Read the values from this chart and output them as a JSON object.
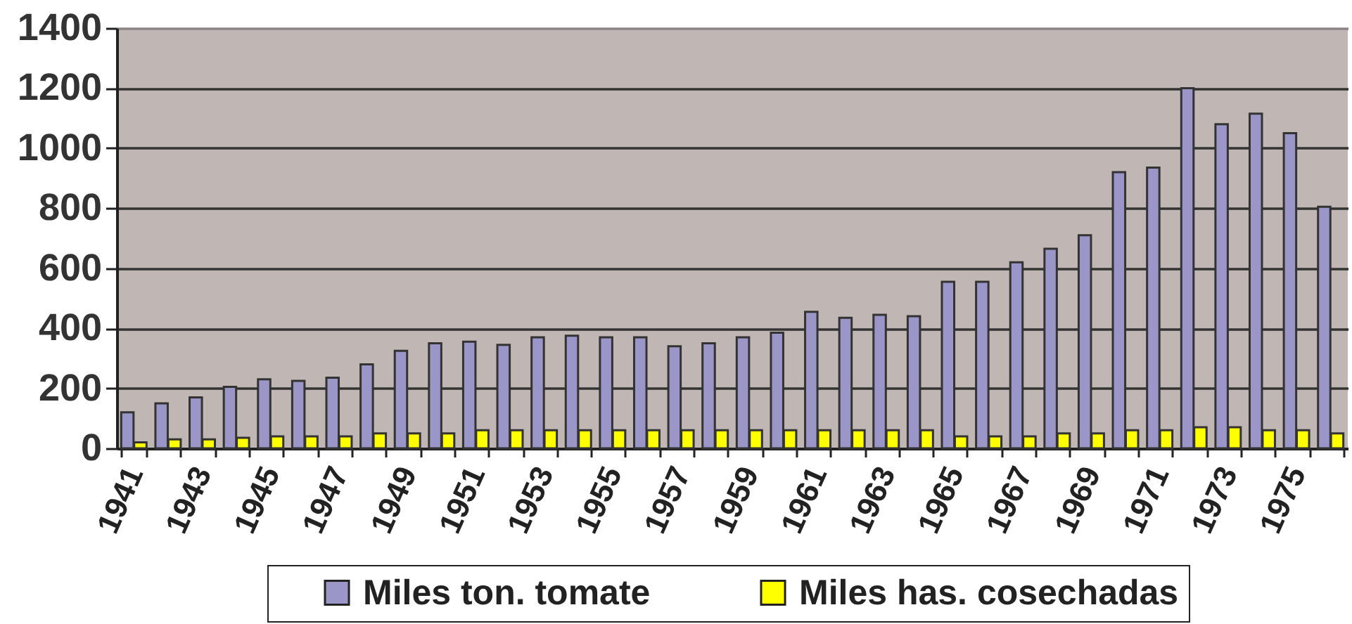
{
  "chart_data": {
    "type": "bar",
    "categories": [
      "1941",
      null,
      "1943",
      null,
      "1945",
      null,
      "1947",
      null,
      "1949",
      null,
      "1951",
      null,
      "1953",
      null,
      "1955",
      null,
      "1957",
      null,
      "1959",
      null,
      "1961",
      null,
      "1963",
      null,
      "1965",
      null,
      "1967",
      null,
      "1969",
      null,
      "1971",
      null,
      "1973",
      null,
      "1975",
      null
    ],
    "series": [
      {
        "name": "Miles ton. tomate",
        "color": "#9b96c8",
        "values": [
          120,
          150,
          170,
          205,
          230,
          225,
          235,
          280,
          325,
          350,
          355,
          345,
          370,
          375,
          370,
          370,
          340,
          350,
          370,
          385,
          455,
          435,
          445,
          440,
          555,
          555,
          620,
          665,
          710,
          920,
          935,
          1200,
          1080,
          1115,
          1050,
          805
        ]
      },
      {
        "name": "Miles has. cosechadas",
        "color": "#ffff00",
        "values": [
          20,
          30,
          30,
          35,
          40,
          40,
          40,
          50,
          50,
          50,
          60,
          60,
          60,
          60,
          60,
          60,
          60,
          60,
          60,
          60,
          60,
          60,
          60,
          60,
          40,
          40,
          40,
          50,
          50,
          60,
          60,
          70,
          70,
          60,
          60,
          50
        ]
      }
    ],
    "ylim": [
      0,
      1400
    ],
    "yticks": [
      0,
      200,
      400,
      600,
      800,
      1000,
      1200,
      1400
    ],
    "grid": "y",
    "legend": "bottom"
  }
}
